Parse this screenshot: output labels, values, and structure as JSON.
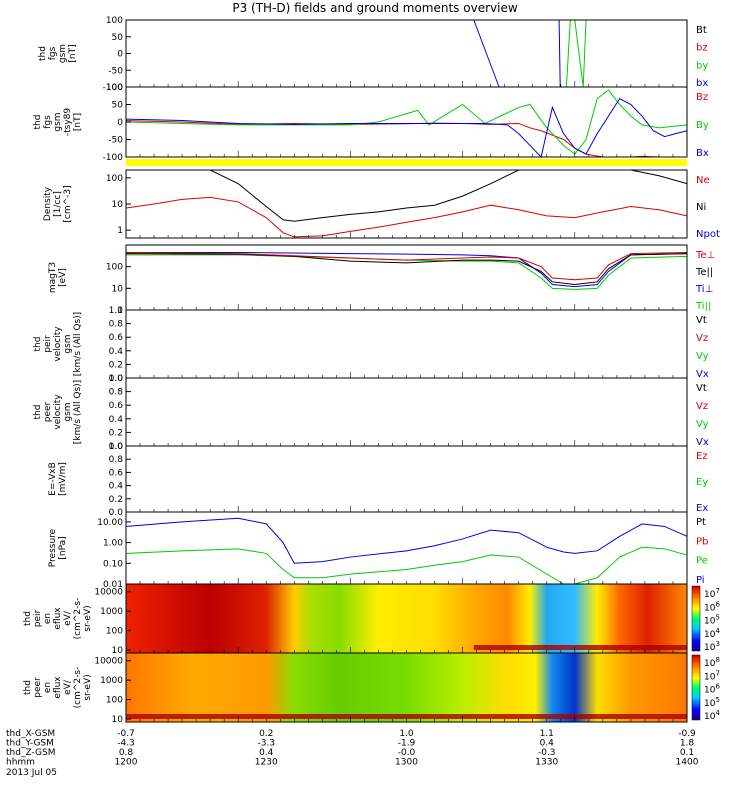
{
  "title": "P3 (TH-D) fields and ground moments overview",
  "colors": {
    "black": "#000000",
    "red": "#dd0000",
    "green": "#00cc00",
    "blue": "#0000dd",
    "yellow": "#ffff00"
  },
  "chart_data": [
    {
      "type": "line",
      "ylabel": [
        "thd",
        "fgs",
        "gsm",
        "[nT]"
      ],
      "ylim": [
        -100,
        100
      ],
      "yticks": [
        "100",
        "50",
        "0",
        "-50",
        "-100"
      ],
      "legend": [
        {
          "label": "Bt",
          "color": "black"
        },
        {
          "label": "bz",
          "color": "red"
        },
        {
          "label": "by",
          "color": "green"
        },
        {
          "label": "bx",
          "color": "blue"
        }
      ],
      "series": [
        {
          "name": "bx",
          "color": "blue",
          "x": [
            0.62,
            0.665
          ],
          "y": [
            100,
            -100
          ]
        },
        {
          "name": "by",
          "color": "green",
          "x": [
            0.785,
            0.792,
            0.8,
            0.815,
            0.82
          ],
          "y": [
            -100,
            100,
            100,
            -100,
            100
          ]
        },
        {
          "name": "bx",
          "color": "blue",
          "x": [
            0.772,
            0.774
          ],
          "y": [
            100,
            -100
          ]
        }
      ]
    },
    {
      "type": "line",
      "ylabel": [
        "thd",
        "fgs",
        "gsm",
        "-tsy89",
        "[nT]"
      ],
      "ylim": [
        -120,
        120
      ],
      "yticks": [
        "100",
        "50",
        "0",
        "-50",
        "-100"
      ],
      "legend": [
        {
          "label": "Bz",
          "color": "red"
        },
        {
          "label": "By",
          "color": "green"
        },
        {
          "label": "Bx",
          "color": "blue"
        }
      ],
      "series": [
        {
          "name": "Bz",
          "color": "red",
          "x": [
            0,
            0.1,
            0.2,
            0.3,
            0.4,
            0.5,
            0.55,
            0.6,
            0.65,
            0.7,
            0.72,
            0.74,
            0.78,
            0.8,
            0.82,
            0.85,
            0.9,
            0.92,
            0.95,
            1.0
          ],
          "y": [
            5,
            0,
            -8,
            -5,
            -8,
            -6,
            -4,
            -5,
            -8,
            -5,
            -20,
            -30,
            -60,
            -90,
            -110,
            -120,
            -125,
            -118,
            -125,
            -120
          ]
        },
        {
          "name": "By",
          "color": "green",
          "x": [
            0,
            0.1,
            0.2,
            0.3,
            0.4,
            0.45,
            0.52,
            0.54,
            0.6,
            0.64,
            0.7,
            0.72,
            0.75,
            0.78,
            0.8,
            0.82,
            0.84,
            0.86,
            0.88,
            0.9,
            0.92,
            0.95,
            1.0
          ],
          "y": [
            0,
            -5,
            -10,
            -10,
            -10,
            0,
            40,
            -10,
            60,
            -5,
            50,
            60,
            -20,
            -80,
            -110,
            -60,
            80,
            110,
            60,
            20,
            -10,
            -20,
            -10
          ]
        },
        {
          "name": "Bx",
          "color": "blue",
          "x": [
            0,
            0.1,
            0.2,
            0.3,
            0.4,
            0.5,
            0.6,
            0.64,
            0.68,
            0.7,
            0.72,
            0.74,
            0.76,
            0.78,
            0.8,
            0.82,
            0.84,
            0.86,
            0.88,
            0.9,
            0.92,
            0.94,
            0.96,
            0.98,
            1.0
          ],
          "y": [
            10,
            5,
            -5,
            -8,
            -5,
            -5,
            -5,
            -5,
            -10,
            -40,
            -80,
            -120,
            50,
            -40,
            -90,
            -110,
            -40,
            20,
            80,
            60,
            20,
            -30,
            -50,
            -40,
            -30
          ]
        }
      ]
    },
    {
      "type": "line",
      "ylabel": [
        "Density",
        "[1/cc]",
        "[cm^-3]"
      ],
      "ylog": true,
      "ylim": [
        0.5,
        200
      ],
      "yticks": [
        "100",
        "10",
        "1"
      ],
      "legend": [
        {
          "label": "Ne",
          "color": "red"
        },
        {
          "label": "Ni",
          "color": "black"
        },
        {
          "label": "Npot",
          "color": "blue"
        }
      ],
      "series": [
        {
          "name": "Ni",
          "color": "black",
          "x": [
            0,
            0.05,
            0.1,
            0.15,
            0.2,
            0.25,
            0.28,
            0.3,
            0.35,
            0.4,
            0.45,
            0.5,
            0.55,
            0.6,
            0.65,
            0.7,
            0.75,
            0.8,
            0.85,
            0.9,
            0.95,
            1.0
          ],
          "y": [
            200,
            220,
            240,
            200,
            60,
            8,
            2.5,
            2.2,
            3,
            4,
            5,
            7,
            9,
            20,
            60,
            200,
            250,
            250,
            240,
            220,
            120,
            60
          ]
        },
        {
          "name": "Ne",
          "color": "red",
          "x": [
            0,
            0.05,
            0.1,
            0.15,
            0.2,
            0.25,
            0.28,
            0.3,
            0.35,
            0.4,
            0.45,
            0.5,
            0.55,
            0.6,
            0.65,
            0.7,
            0.75,
            0.8,
            0.85,
            0.9,
            0.95,
            1.0
          ],
          "y": [
            7,
            10,
            15,
            18,
            12,
            3,
            0.8,
            0.55,
            0.6,
            0.9,
            1.3,
            2,
            3,
            5,
            9,
            6,
            3.5,
            3,
            5,
            8,
            6,
            3.5
          ]
        }
      ]
    },
    {
      "type": "line",
      "ylabel": [
        "magT3",
        "[eV]"
      ],
      "ylog": true,
      "ylim": [
        1,
        1000
      ],
      "yticks": [
        "100",
        "10",
        "1"
      ],
      "legend": [
        {
          "label": "Te⊥",
          "color": "red"
        },
        {
          "label": "Te||",
          "color": "black"
        },
        {
          "label": "Ti⊥",
          "color": "blue"
        },
        {
          "label": "Ti||",
          "color": "green"
        }
      ],
      "series": [
        {
          "name": "Ti⊥",
          "color": "blue",
          "x": [
            0,
            0.2,
            0.4,
            0.5,
            0.6,
            0.65,
            0.7,
            0.74,
            0.76,
            0.8,
            0.84,
            0.86,
            0.9,
            1.0
          ],
          "y": [
            450,
            450,
            400,
            380,
            350,
            320,
            250,
            50,
            15,
            12,
            15,
            60,
            350,
            400
          ]
        },
        {
          "name": "Ti||",
          "color": "green",
          "x": [
            0,
            0.2,
            0.4,
            0.5,
            0.6,
            0.65,
            0.7,
            0.74,
            0.76,
            0.8,
            0.84,
            0.86,
            0.9,
            1.0
          ],
          "y": [
            350,
            350,
            250,
            200,
            180,
            180,
            150,
            30,
            10,
            9,
            10,
            40,
            250,
            300
          ]
        },
        {
          "name": "Te||",
          "color": "black",
          "x": [
            0,
            0.2,
            0.3,
            0.4,
            0.5,
            0.6,
            0.65,
            0.7,
            0.74,
            0.76,
            0.8,
            0.84,
            0.86,
            0.9,
            1.0
          ],
          "y": [
            400,
            380,
            300,
            180,
            150,
            200,
            200,
            180,
            60,
            20,
            15,
            20,
            80,
            350,
            400
          ]
        },
        {
          "name": "Te⊥",
          "color": "red",
          "x": [
            0,
            0.2,
            0.3,
            0.4,
            0.5,
            0.6,
            0.65,
            0.7,
            0.74,
            0.76,
            0.8,
            0.84,
            0.86,
            0.9,
            1.0
          ],
          "y": [
            450,
            400,
            320,
            250,
            200,
            250,
            280,
            250,
            100,
            30,
            25,
            30,
            120,
            400,
            450
          ]
        }
      ]
    },
    {
      "type": "line",
      "ylabel": [
        "thd",
        "peir",
        "velocity",
        "gsm",
        "[km/s (All Qs)]"
      ],
      "ylim": [
        0,
        1
      ],
      "yticks": [
        "1.0",
        "0.8",
        "0.6",
        "0.4",
        "0.2",
        "0.0"
      ],
      "legend": [
        {
          "label": "Vt",
          "color": "black"
        },
        {
          "label": "Vz",
          "color": "red"
        },
        {
          "label": "Vy",
          "color": "green"
        },
        {
          "label": "Vx",
          "color": "blue"
        }
      ],
      "series": []
    },
    {
      "type": "line",
      "ylabel": [
        "thd",
        "peer",
        "velocity",
        "gsm",
        "[km/s (All Qs)]"
      ],
      "ylim": [
        0,
        1
      ],
      "yticks": [
        "1.0",
        "0.8",
        "0.6",
        "0.4",
        "0.2",
        "0.0"
      ],
      "legend": [
        {
          "label": "Vt",
          "color": "black"
        },
        {
          "label": "Vz",
          "color": "red"
        },
        {
          "label": "Vy",
          "color": "green"
        },
        {
          "label": "Vx",
          "color": "blue"
        }
      ],
      "series": []
    },
    {
      "type": "line",
      "ylabel": [
        "E=-VxB",
        "[mV/m]"
      ],
      "ylim": [
        0,
        1
      ],
      "yticks": [
        "1.0",
        "0.8",
        "0.6",
        "0.4",
        "0.2",
        "0.0"
      ],
      "legend": [
        {
          "label": "Ez",
          "color": "red"
        },
        {
          "label": "Ey",
          "color": "green"
        },
        {
          "label": "Ex",
          "color": "blue"
        }
      ],
      "series": []
    },
    {
      "type": "line",
      "ylabel": [
        "Pressure",
        "[nPa]"
      ],
      "ylog": true,
      "ylim": [
        0.01,
        30
      ],
      "yticks": [
        "10.00",
        "1.00",
        "0.10",
        "0.01"
      ],
      "legend": [
        {
          "label": "Pt",
          "color": "black"
        },
        {
          "label": "Pb",
          "color": "red"
        },
        {
          "label": "Pe",
          "color": "green"
        },
        {
          "label": "Pi",
          "color": "blue"
        }
      ],
      "series": [
        {
          "name": "Pi",
          "color": "blue",
          "x": [
            0,
            0.1,
            0.2,
            0.25,
            0.28,
            0.3,
            0.35,
            0.4,
            0.5,
            0.55,
            0.6,
            0.65,
            0.7,
            0.75,
            0.78,
            0.8,
            0.84,
            0.88,
            0.92,
            0.96,
            1.0
          ],
          "y": [
            6,
            10,
            15,
            8,
            1,
            0.1,
            0.12,
            0.2,
            0.4,
            0.7,
            1.5,
            4,
            3,
            0.6,
            0.35,
            0.3,
            0.4,
            2,
            8,
            6,
            2
          ]
        },
        {
          "name": "Pe",
          "color": "green",
          "x": [
            0,
            0.1,
            0.2,
            0.25,
            0.28,
            0.3,
            0.35,
            0.4,
            0.5,
            0.55,
            0.6,
            0.65,
            0.7,
            0.75,
            0.78,
            0.8,
            0.84,
            0.88,
            0.92,
            0.96,
            1.0
          ],
          "y": [
            0.3,
            0.4,
            0.5,
            0.3,
            0.05,
            0.02,
            0.02,
            0.03,
            0.05,
            0.08,
            0.12,
            0.25,
            0.2,
            0.03,
            0.01,
            0.01,
            0.02,
            0.2,
            0.6,
            0.5,
            0.25
          ]
        }
      ]
    },
    {
      "type": "heatmap",
      "ylabel": [
        "thd",
        "peir",
        "en",
        "eflux",
        "eV/",
        "(cm^2-s-",
        "sr-eV)"
      ],
      "ylog": true,
      "yticks": [
        "10000",
        "1000",
        "100",
        "10"
      ],
      "colorbar_ticks": [
        "10^7",
        "10^6",
        "10^5",
        "10^4",
        "10^3"
      ]
    },
    {
      "type": "heatmap",
      "ylabel": [
        "thd",
        "peer",
        "en",
        "eflux",
        "eV/",
        "(cm^2-s-",
        "sr-eV)"
      ],
      "ylog": true,
      "yticks": [
        "10000",
        "1000",
        "100",
        "10"
      ],
      "colorbar_ticks": [
        "10^8",
        "10^7",
        "10^6",
        "10^5",
        "10^4"
      ]
    }
  ],
  "xaxis": {
    "rows": [
      {
        "label": "thd_X-GSM",
        "values": [
          "-0.7",
          "0.2",
          "1.0",
          "1.1",
          "-0.9"
        ]
      },
      {
        "label": "thd_Y-GSM",
        "values": [
          "-4.3",
          "-3.3",
          "-1.9",
          "0.4",
          "1.8"
        ]
      },
      {
        "label": "thd_Z-GSM",
        "values": [
          "0.8",
          "0.4",
          "-0.0",
          "-0.3",
          "0.1"
        ]
      },
      {
        "label": "hhmm",
        "values": [
          "1200",
          "1230",
          "1300",
          "1330",
          "1400"
        ]
      }
    ],
    "date": "2013 Jul 05"
  }
}
